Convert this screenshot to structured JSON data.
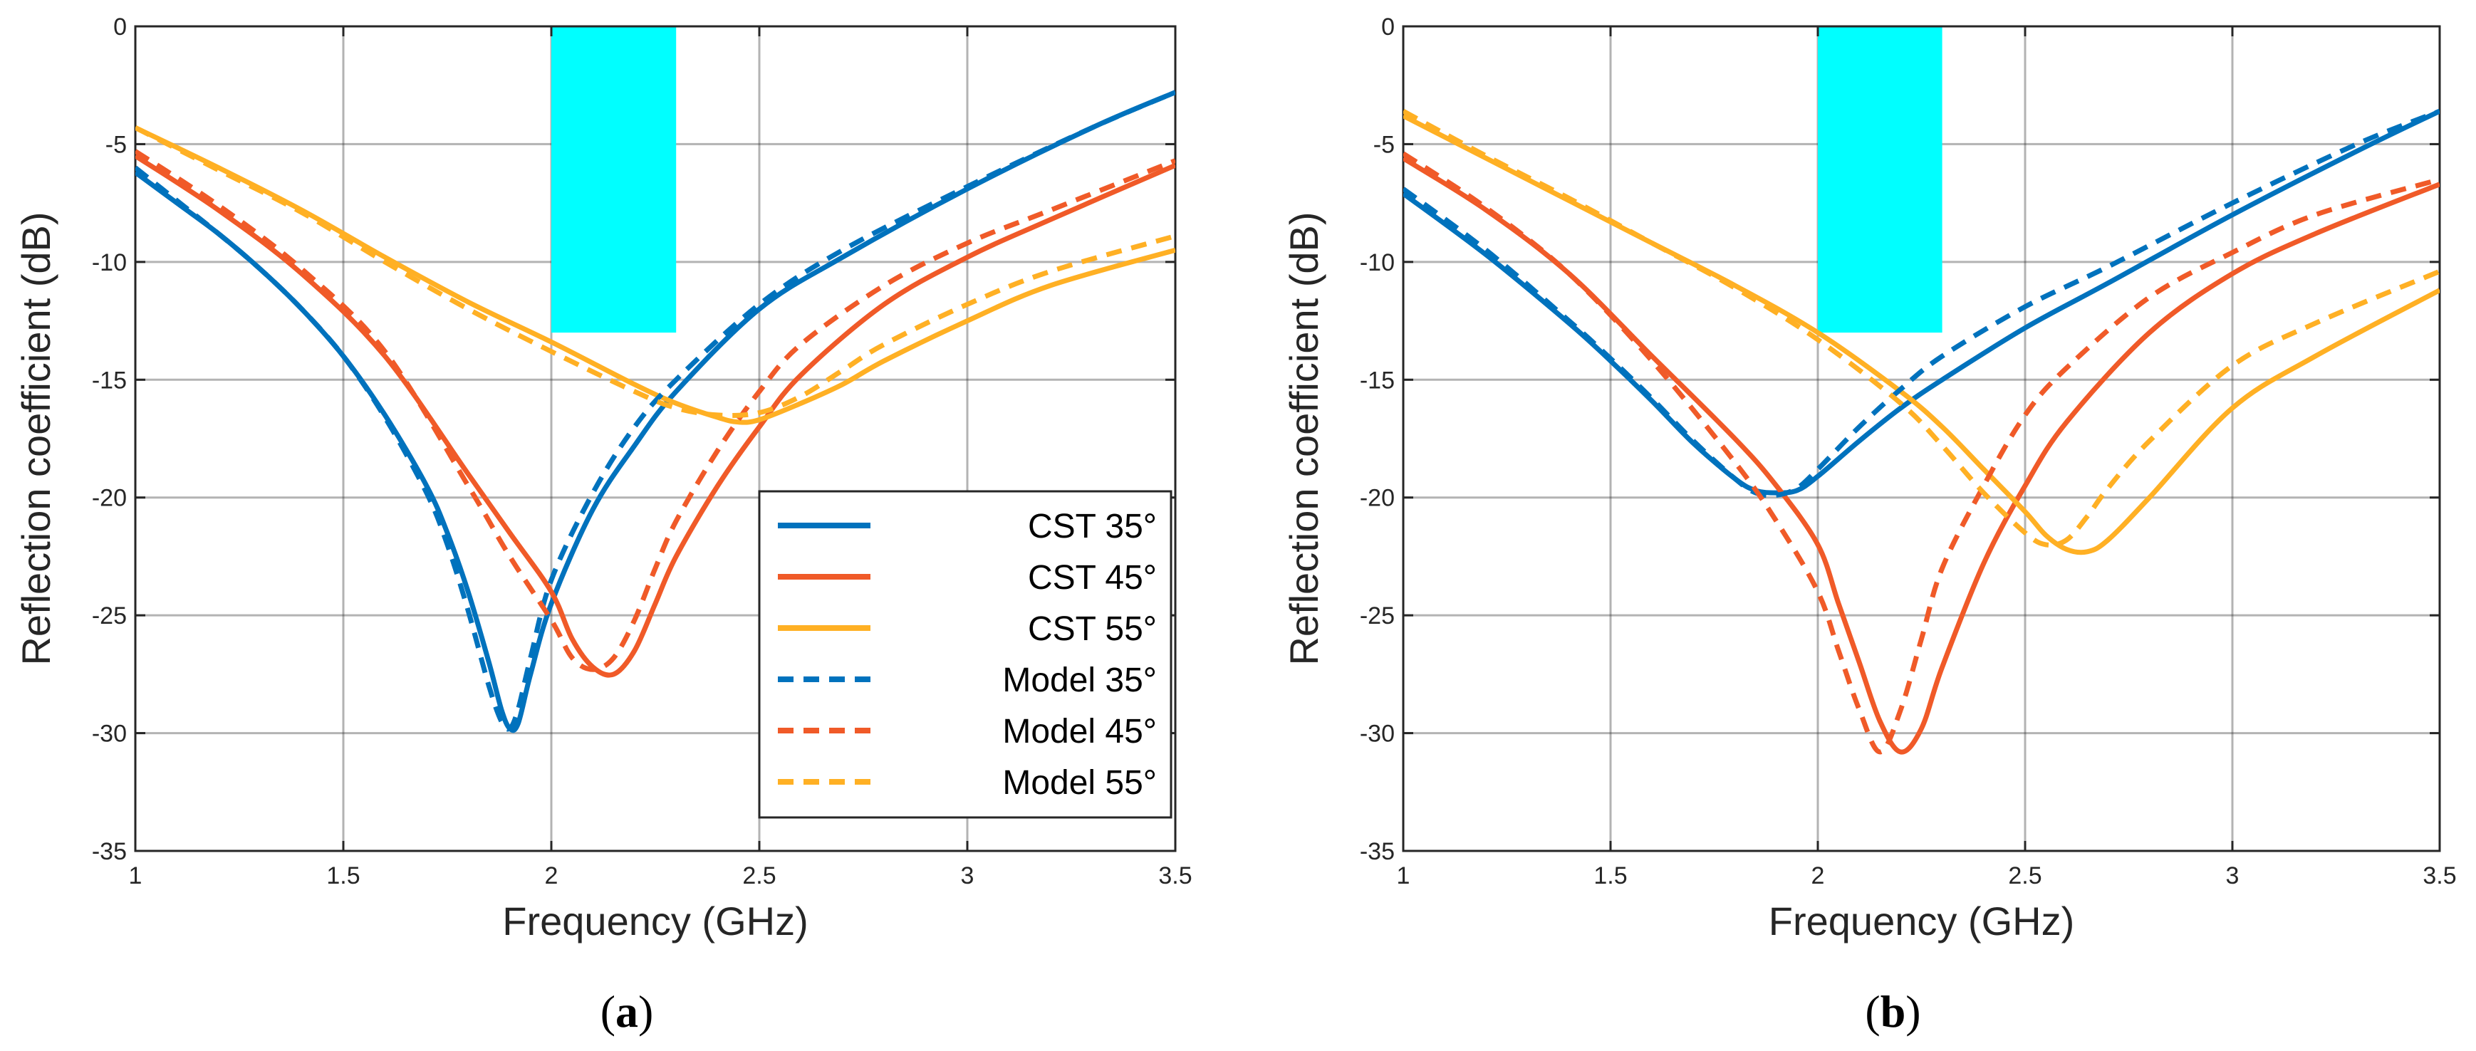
{
  "colors": {
    "cst35": "#0072BD",
    "cst45": "#F05A28",
    "cst55": "#FFB024",
    "band": "#00FFFF",
    "grid": "#262626",
    "axis": "#262626"
  },
  "chart_data": [
    {
      "type": "line",
      "panel": "(a)",
      "panel_letter": "a",
      "xlabel": "Frequency (GHz)",
      "ylabel": "Reflection coefficient (dB)",
      "xlim": [
        1,
        3.5
      ],
      "ylim": [
        -35,
        0
      ],
      "xticks": [
        1,
        1.5,
        2,
        2.5,
        3,
        3.5
      ],
      "xtick_labels": [
        "1",
        "1.5",
        "2",
        "2.5",
        "3",
        "3.5"
      ],
      "yticks": [
        0,
        -5,
        -10,
        -15,
        -20,
        -25,
        -30,
        -35
      ],
      "ytick_labels": [
        "0",
        "-5",
        "-10",
        "-15",
        "-20",
        "-25",
        "-30",
        "-35"
      ],
      "grid": true,
      "band": {
        "x0": 2.0,
        "x1": 2.3,
        "y0": -13,
        "y1": 0
      },
      "legend": {
        "position": "bottom-right",
        "entries": [
          "CST 35°",
          "CST 45°",
          "CST 55°",
          "Model 35°",
          "Model 45°",
          "Model 55°"
        ]
      },
      "series": [
        {
          "name": "CST 35°",
          "color": "cst35",
          "dash": false,
          "x": [
            1.0,
            1.1,
            1.2,
            1.3,
            1.4,
            1.5,
            1.6,
            1.7,
            1.75,
            1.8,
            1.85,
            1.88,
            1.9,
            1.92,
            1.95,
            2.0,
            2.1,
            2.2,
            2.3,
            2.5,
            2.7,
            3.0,
            3.3,
            3.5
          ],
          "y": [
            -6.2,
            -7.5,
            -8.8,
            -10.3,
            -12.0,
            -14.0,
            -16.5,
            -19.5,
            -21.5,
            -24.0,
            -27.0,
            -29.0,
            -29.8,
            -29.6,
            -27.5,
            -24.5,
            -20.5,
            -17.8,
            -15.5,
            -12.0,
            -9.8,
            -6.9,
            -4.3,
            -2.8
          ]
        },
        {
          "name": "CST 45°",
          "color": "cst45",
          "dash": false,
          "x": [
            1.0,
            1.2,
            1.4,
            1.6,
            1.8,
            1.9,
            2.0,
            2.05,
            2.1,
            2.15,
            2.2,
            2.25,
            2.3,
            2.4,
            2.5,
            2.6,
            2.8,
            3.0,
            3.2,
            3.5
          ],
          "y": [
            -5.5,
            -7.8,
            -10.5,
            -14.0,
            -19.0,
            -21.5,
            -24.0,
            -26.0,
            -27.2,
            -27.5,
            -26.5,
            -24.5,
            -22.5,
            -19.5,
            -17.0,
            -14.8,
            -11.8,
            -9.8,
            -8.2,
            -5.9
          ]
        },
        {
          "name": "CST 55°",
          "color": "cst55",
          "dash": false,
          "x": [
            1.0,
            1.2,
            1.4,
            1.6,
            1.8,
            2.0,
            2.2,
            2.3,
            2.4,
            2.45,
            2.5,
            2.6,
            2.7,
            2.8,
            3.0,
            3.2,
            3.5
          ],
          "y": [
            -4.3,
            -6.0,
            -7.8,
            -9.8,
            -11.7,
            -13.4,
            -15.2,
            -16.0,
            -16.6,
            -16.8,
            -16.7,
            -16.0,
            -15.2,
            -14.2,
            -12.5,
            -11.0,
            -9.5
          ]
        },
        {
          "name": "Model 35°",
          "color": "cst35",
          "dash": true,
          "x": [
            1.0,
            1.1,
            1.2,
            1.3,
            1.4,
            1.5,
            1.6,
            1.7,
            1.75,
            1.8,
            1.85,
            1.88,
            1.9,
            1.92,
            1.95,
            2.0,
            2.1,
            2.2,
            2.3,
            2.5,
            2.7,
            3.0,
            3.3,
            3.5
          ],
          "y": [
            -6.0,
            -7.4,
            -8.8,
            -10.3,
            -12.0,
            -14.0,
            -16.6,
            -19.8,
            -22.0,
            -24.8,
            -28.0,
            -29.5,
            -29.8,
            -29.0,
            -26.8,
            -23.5,
            -19.8,
            -17.0,
            -15.0,
            -11.8,
            -9.5,
            -6.8,
            -4.3,
            -2.8
          ]
        },
        {
          "name": "Model 45°",
          "color": "cst45",
          "dash": true,
          "x": [
            1.0,
            1.2,
            1.4,
            1.6,
            1.8,
            1.9,
            2.0,
            2.05,
            2.1,
            2.15,
            2.2,
            2.25,
            2.3,
            2.4,
            2.5,
            2.6,
            2.8,
            3.0,
            3.2,
            3.5
          ],
          "y": [
            -5.3,
            -7.6,
            -10.3,
            -13.8,
            -19.5,
            -22.5,
            -25.2,
            -26.8,
            -27.3,
            -26.8,
            -25.2,
            -23.0,
            -21.0,
            -18.0,
            -15.5,
            -13.5,
            -11.0,
            -9.2,
            -7.8,
            -5.7
          ]
        },
        {
          "name": "Model 55°",
          "color": "cst55",
          "dash": true,
          "x": [
            1.0,
            1.2,
            1.4,
            1.6,
            1.8,
            2.0,
            2.2,
            2.3,
            2.4,
            2.5,
            2.6,
            2.7,
            2.8,
            3.0,
            3.2,
            3.5
          ],
          "y": [
            -4.3,
            -6.1,
            -7.9,
            -10.0,
            -12.0,
            -13.8,
            -15.5,
            -16.2,
            -16.5,
            -16.4,
            -15.7,
            -14.6,
            -13.5,
            -11.8,
            -10.4,
            -8.9
          ]
        }
      ]
    },
    {
      "type": "line",
      "panel": "(b)",
      "panel_letter": "b",
      "xlabel": "Frequency (GHz)",
      "ylabel": "Reflection coefficient (dB)",
      "xlim": [
        1,
        3.5
      ],
      "ylim": [
        -35,
        0
      ],
      "xticks": [
        1,
        1.5,
        2,
        2.5,
        3,
        3.5
      ],
      "xtick_labels": [
        "1",
        "1.5",
        "2",
        "2.5",
        "3",
        "3.5"
      ],
      "yticks": [
        0,
        -5,
        -10,
        -15,
        -20,
        -25,
        -30,
        -35
      ],
      "ytick_labels": [
        "0",
        "-5",
        "-10",
        "-15",
        "-20",
        "-25",
        "-30",
        "-35"
      ],
      "grid": true,
      "band": {
        "x0": 2.0,
        "x1": 2.3,
        "y0": -13,
        "y1": 0
      },
      "series": [
        {
          "name": "CST 35°",
          "color": "cst35",
          "dash": false,
          "x": [
            1.0,
            1.2,
            1.4,
            1.5,
            1.6,
            1.7,
            1.8,
            1.85,
            1.9,
            1.95,
            2.0,
            2.1,
            2.2,
            2.3,
            2.5,
            2.7,
            3.0,
            3.3,
            3.5
          ],
          "y": [
            -7.1,
            -9.7,
            -12.6,
            -14.2,
            -15.9,
            -17.7,
            -19.2,
            -19.7,
            -19.8,
            -19.7,
            -19.1,
            -17.6,
            -16.2,
            -15.0,
            -12.8,
            -10.9,
            -8.0,
            -5.3,
            -3.6
          ]
        },
        {
          "name": "CST 45°",
          "color": "cst45",
          "dash": false,
          "x": [
            1.0,
            1.2,
            1.4,
            1.6,
            1.8,
            1.9,
            2.0,
            2.05,
            2.1,
            2.15,
            2.2,
            2.25,
            2.3,
            2.4,
            2.5,
            2.6,
            2.8,
            3.0,
            3.2,
            3.5
          ],
          "y": [
            -5.6,
            -7.8,
            -10.5,
            -14.0,
            -17.5,
            -19.5,
            -22.0,
            -24.5,
            -27.0,
            -29.5,
            -30.8,
            -29.8,
            -27.2,
            -22.8,
            -19.5,
            -16.8,
            -13.0,
            -10.5,
            -8.8,
            -6.7
          ]
        },
        {
          "name": "CST 55°",
          "color": "cst55",
          "dash": false,
          "x": [
            1.0,
            1.2,
            1.4,
            1.6,
            1.8,
            2.0,
            2.2,
            2.3,
            2.4,
            2.5,
            2.55,
            2.6,
            2.65,
            2.7,
            2.8,
            3.0,
            3.2,
            3.5
          ],
          "y": [
            -3.8,
            -5.6,
            -7.4,
            -9.2,
            -11.0,
            -13.0,
            -15.5,
            -17.0,
            -18.8,
            -20.6,
            -21.6,
            -22.2,
            -22.3,
            -21.8,
            -20.0,
            -16.2,
            -14.0,
            -11.2
          ]
        },
        {
          "name": "Model 35°",
          "color": "cst35",
          "dash": true,
          "x": [
            1.0,
            1.2,
            1.4,
            1.5,
            1.6,
            1.7,
            1.8,
            1.85,
            1.9,
            1.95,
            2.0,
            2.1,
            2.2,
            2.3,
            2.5,
            2.7,
            3.0,
            3.3,
            3.5
          ],
          "y": [
            -6.9,
            -9.5,
            -12.5,
            -14.1,
            -15.8,
            -17.6,
            -19.2,
            -19.8,
            -19.9,
            -19.6,
            -18.8,
            -17.0,
            -15.4,
            -14.0,
            -11.9,
            -10.2,
            -7.5,
            -5.0,
            -3.6
          ]
        },
        {
          "name": "Model 45°",
          "color": "cst45",
          "dash": true,
          "x": [
            1.0,
            1.2,
            1.4,
            1.6,
            1.8,
            1.9,
            2.0,
            2.05,
            2.1,
            2.15,
            2.2,
            2.25,
            2.3,
            2.4,
            2.5,
            2.6,
            2.8,
            3.0,
            3.2,
            3.5
          ],
          "y": [
            -5.4,
            -7.7,
            -10.5,
            -14.2,
            -18.5,
            -21.0,
            -24.0,
            -26.5,
            -29.0,
            -30.8,
            -29.0,
            -26.0,
            -23.0,
            -19.5,
            -16.5,
            -14.5,
            -11.5,
            -9.6,
            -8.0,
            -6.5
          ]
        },
        {
          "name": "Model 55°",
          "color": "cst55",
          "dash": true,
          "x": [
            1.0,
            1.2,
            1.4,
            1.6,
            1.8,
            2.0,
            2.2,
            2.3,
            2.4,
            2.5,
            2.55,
            2.6,
            2.65,
            2.7,
            2.8,
            3.0,
            3.2,
            3.5
          ],
          "y": [
            -3.6,
            -5.5,
            -7.3,
            -9.2,
            -11.1,
            -13.3,
            -16.0,
            -17.8,
            -19.8,
            -21.5,
            -22.0,
            -21.8,
            -20.8,
            -19.6,
            -17.6,
            -14.4,
            -12.6,
            -10.4
          ]
        }
      ]
    }
  ]
}
